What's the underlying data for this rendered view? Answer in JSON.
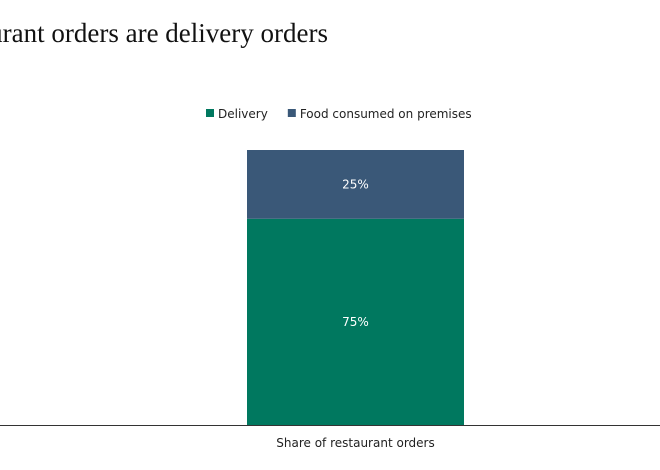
{
  "title": "taurant orders are delivery orders",
  "chart_data": {
    "type": "bar",
    "stacked": true,
    "categories": [
      "Share of restaurant orders"
    ],
    "series": [
      {
        "name": "Delivery",
        "values": [
          75
        ],
        "label": "75%",
        "color": "#00785F"
      },
      {
        "name": "Food consumed on premises",
        "values": [
          25
        ],
        "label": "25%",
        "color": "#3A5878"
      }
    ],
    "ylim": [
      0,
      100
    ],
    "grid": false,
    "legend_position": "top"
  }
}
